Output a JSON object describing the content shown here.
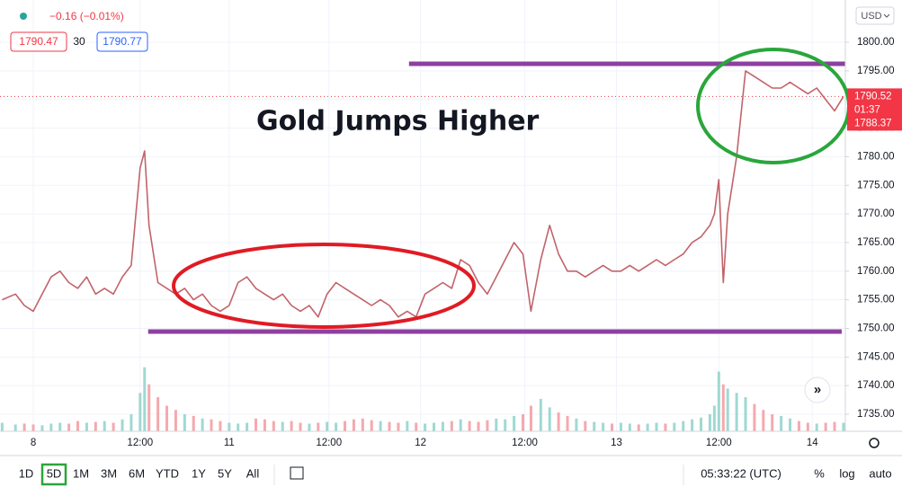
{
  "header": {
    "change": "−0.16 (−0.01%)",
    "bid": "1790.47",
    "spread": "30",
    "ask": "1790.77",
    "currency": "USD"
  },
  "chart_data": {
    "type": "line",
    "title": "Gold Jumps Higher",
    "color": "#c2636a",
    "x": [
      -3.5,
      -2,
      -1,
      0,
      1,
      2,
      3,
      4,
      5,
      6,
      7,
      8,
      9,
      10,
      11,
      12,
      12.5,
      13,
      14,
      15,
      16,
      17,
      18,
      19,
      20,
      21,
      22,
      23,
      24,
      25,
      26,
      27,
      28,
      29,
      30,
      31,
      32,
      33,
      34,
      35,
      36,
      37,
      38,
      39,
      40,
      41,
      42,
      43,
      44,
      45,
      46,
      47,
      48,
      49,
      50,
      51,
      52,
      53,
      54,
      55,
      55.9,
      57,
      58,
      59,
      60,
      61,
      62,
      63,
      64,
      65,
      66,
      67,
      68,
      69,
      70,
      71,
      72,
      73,
      74,
      75,
      76,
      76.5,
      77,
      77.5,
      78,
      79,
      80,
      81,
      82,
      83,
      84,
      85,
      86,
      87,
      88,
      89,
      90,
      91
    ],
    "values": [
      1755,
      1756,
      1754,
      1753,
      1756,
      1759,
      1760,
      1758,
      1757,
      1759,
      1756,
      1757,
      1756,
      1759,
      1761,
      1778,
      1781,
      1768,
      1758,
      1757,
      1756,
      1757,
      1755,
      1756,
      1754,
      1753,
      1754,
      1758,
      1759,
      1757,
      1756,
      1755,
      1756,
      1754,
      1753,
      1754,
      1752,
      1756,
      1758,
      1757,
      1756,
      1755,
      1754,
      1755,
      1754,
      1752,
      1753,
      1752,
      1756,
      1757,
      1758,
      1757,
      1762,
      1761,
      1758,
      1756,
      1759,
      1762,
      1765,
      1763,
      1753,
      1762,
      1768,
      1763,
      1760,
      1760,
      1759,
      1760,
      1761,
      1760,
      1760,
      1761,
      1760,
      1761,
      1762,
      1761,
      1762,
      1763,
      1765,
      1766,
      1768,
      1770,
      1776,
      1758,
      1770,
      1780,
      1795,
      1794,
      1793,
      1792,
      1792,
      1793,
      1792,
      1791,
      1792,
      1790,
      1788,
      1790.52
    ],
    "volume": [
      10,
      8,
      9,
      8,
      7,
      9,
      10,
      9,
      12,
      10,
      11,
      12,
      10,
      14,
      20,
      45,
      75,
      55,
      40,
      30,
      25,
      20,
      18,
      15,
      14,
      12,
      10,
      9,
      10,
      15,
      14,
      12,
      11,
      12,
      10,
      9,
      10,
      11,
      10,
      12,
      14,
      15,
      13,
      12,
      11,
      10,
      12,
      10,
      9,
      10,
      11,
      12,
      14,
      12,
      11,
      13,
      15,
      14,
      18,
      20,
      30,
      38,
      28,
      22,
      18,
      15,
      12,
      11,
      10,
      9,
      10,
      9,
      8,
      9,
      10,
      9,
      10,
      12,
      14,
      16,
      20,
      30,
      70,
      55,
      50,
      45,
      40,
      32,
      25,
      20,
      18,
      15,
      12,
      10,
      9,
      10,
      11,
      10
    ],
    "vlim": [
      0,
      100
    ],
    "xlim": [
      -3.74,
      91.21
    ],
    "xticks": [
      {
        "value": 0,
        "label": "8"
      },
      {
        "value": 12,
        "label": "12:00"
      },
      {
        "value": 22,
        "label": "11"
      },
      {
        "value": 33.2,
        "label": "12:00"
      },
      {
        "value": 43.5,
        "label": "12"
      },
      {
        "value": 55.2,
        "label": "12:00"
      },
      {
        "value": 65.5,
        "label": "13"
      },
      {
        "value": 77,
        "label": "12:00"
      },
      {
        "value": 87.5,
        "label": "14"
      }
    ],
    "ylim": [
      1732.02,
      1807.38
    ],
    "yticks": [
      {
        "value": 1735,
        "label": "1735.00"
      },
      {
        "value": 1740,
        "label": "1740.00"
      },
      {
        "value": 1745,
        "label": "1745.00"
      },
      {
        "value": 1750,
        "label": "1750.00"
      },
      {
        "value": 1755,
        "label": "1755.00"
      },
      {
        "value": 1760,
        "label": "1760.00"
      },
      {
        "value": 1765,
        "label": "1765.00"
      },
      {
        "value": 1770,
        "label": "1770.00"
      },
      {
        "value": 1775,
        "label": "1775.00"
      },
      {
        "value": 1780,
        "label": "1780.00"
      },
      {
        "value": 1785,
        "label": "1785.00"
      },
      {
        "value": 1790,
        "label": "1790.00"
      },
      {
        "value": 1795,
        "label": "1795.00"
      },
      {
        "value": 1800,
        "label": "1800.00"
      }
    ],
    "levels": [
      {
        "value": 1796.23,
        "from": 42.2,
        "to": 91.2,
        "color": "#8e3fa0"
      },
      {
        "value": 1749.44,
        "from": 12.9,
        "to": 90.8,
        "color": "#8e3fa0"
      }
    ],
    "last_price": 1790.52,
    "price_tags": [
      "1790.52",
      "01:37",
      "1788.37"
    ],
    "grid": true
  },
  "footer": {
    "ranges": [
      "1D",
      "5D",
      "1M",
      "3M",
      "6M",
      "YTD",
      "1Y",
      "5Y",
      "All"
    ],
    "clock": "05:33:22 (UTC)",
    "options": [
      "%",
      "log",
      "auto"
    ]
  }
}
